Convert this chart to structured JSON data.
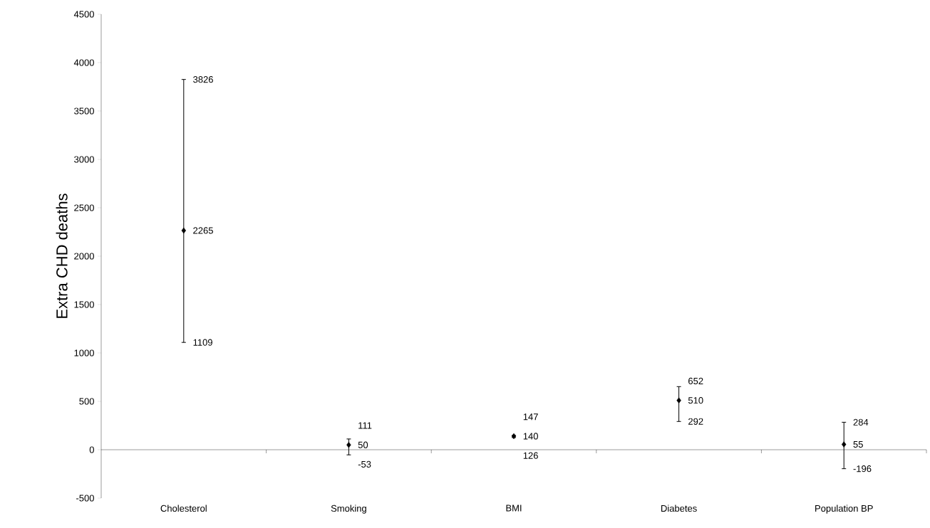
{
  "chart_data": {
    "type": "scatter",
    "ylabel": "Extra CHD deaths",
    "categories": [
      "Cholesterol",
      "Smoking",
      "BMI",
      "Diabetes",
      "Population BP"
    ],
    "values": [
      2265,
      50,
      140,
      510,
      55
    ],
    "errors": [
      [
        1109,
        3826
      ],
      [
        -53,
        111
      ],
      [
        126,
        147
      ],
      [
        292,
        652
      ],
      [
        -196,
        284
      ]
    ],
    "annotations": [
      {
        "text": "3826",
        "x": "Cholesterol",
        "y": 3826
      },
      {
        "text": "1109",
        "x": "Cholesterol",
        "y": 1109
      },
      {
        "text": "111",
        "x": "Smoking",
        "y": 111
      },
      {
        "text": "-53",
        "x": "Smoking",
        "y": -53
      },
      {
        "text": "147",
        "x": "BMI",
        "y": 147
      },
      {
        "text": "126",
        "x": "BMI",
        "y": 126
      },
      {
        "text": "652",
        "x": "Diabetes",
        "y": 652
      },
      {
        "text": "292",
        "x": "Diabetes",
        "y": 292
      },
      {
        "text": "284",
        "x": "Population BP",
        "y": 284
      },
      {
        "text": "-196",
        "x": "Population BP",
        "y": -196
      }
    ],
    "color": "#000000",
    "marker": "diamond",
    "data_labels": true,
    "ylim": [
      -500,
      4500
    ],
    "yticks": [
      -500,
      0,
      500,
      1000,
      1500,
      2000,
      2500,
      3000,
      3500,
      4000,
      4500
    ]
  }
}
